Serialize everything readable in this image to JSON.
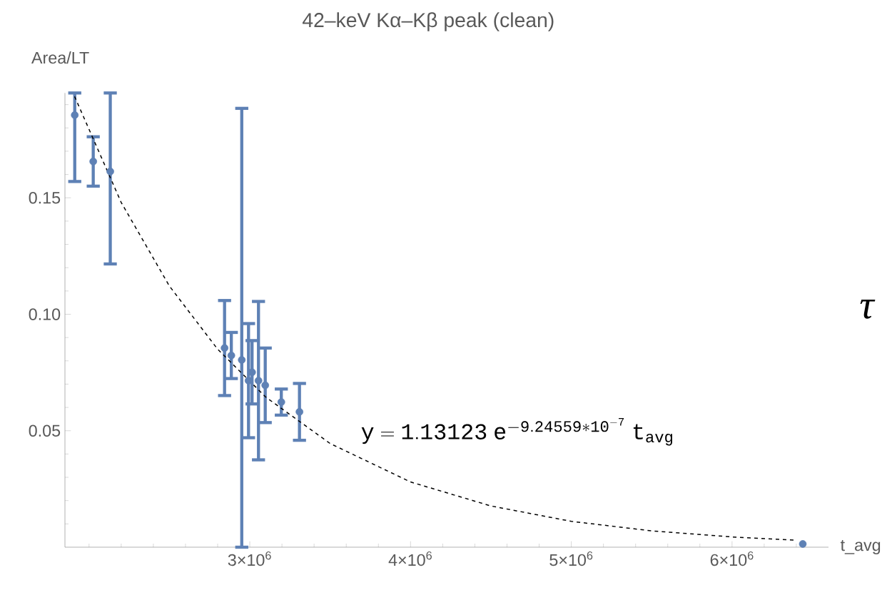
{
  "chart_data": {
    "type": "scatter",
    "title": "42–keV Kα–Kβ peak (clean)",
    "xlabel": "t_avg",
    "ylabel": "Area/LT",
    "xlim": [
      1850000,
      6600000
    ],
    "ylim": [
      0,
      0.195
    ],
    "xticks": [
      {
        "value": 2000000,
        "label": null
      },
      {
        "value": 2200000,
        "label": null
      },
      {
        "value": 2400000,
        "label": null
      },
      {
        "value": 2600000,
        "label": null
      },
      {
        "value": 2800000,
        "label": null
      },
      {
        "value": 3000000,
        "label": "3×10$^{6}$"
      },
      {
        "value": 3200000,
        "label": null
      },
      {
        "value": 3400000,
        "label": null
      },
      {
        "value": 3600000,
        "label": null
      },
      {
        "value": 3800000,
        "label": null
      },
      {
        "value": 4000000,
        "label": "4×10$^{6}$"
      },
      {
        "value": 4200000,
        "label": null
      },
      {
        "value": 4400000,
        "label": null
      },
      {
        "value": 4600000,
        "label": null
      },
      {
        "value": 4800000,
        "label": null
      },
      {
        "value": 5000000,
        "label": "5×10$^{6}$"
      },
      {
        "value": 5200000,
        "label": null
      },
      {
        "value": 5400000,
        "label": null
      },
      {
        "value": 5600000,
        "label": null
      },
      {
        "value": 5800000,
        "label": null
      },
      {
        "value": 6000000,
        "label": "6×10$^{6}$"
      },
      {
        "value": 6200000,
        "label": null
      },
      {
        "value": 6400000,
        "label": null
      }
    ],
    "yticks": [
      {
        "value": 0.01,
        "label": null
      },
      {
        "value": 0.02,
        "label": null
      },
      {
        "value": 0.03,
        "label": null
      },
      {
        "value": 0.04,
        "label": null
      },
      {
        "value": 0.05,
        "label": "0.05"
      },
      {
        "value": 0.06,
        "label": null
      },
      {
        "value": 0.07,
        "label": null
      },
      {
        "value": 0.08,
        "label": null
      },
      {
        "value": 0.09,
        "label": null
      },
      {
        "value": 0.1,
        "label": "0.10"
      },
      {
        "value": 0.11,
        "label": null
      },
      {
        "value": 0.12,
        "label": null
      },
      {
        "value": 0.13,
        "label": null
      },
      {
        "value": 0.14,
        "label": null
      },
      {
        "value": 0.15,
        "label": "0.15"
      },
      {
        "value": 0.16,
        "label": null
      },
      {
        "value": 0.17,
        "label": null
      },
      {
        "value": 0.18,
        "label": null
      },
      {
        "value": 0.19,
        "label": null
      }
    ],
    "series": [
      {
        "color": "#5e81b5",
        "marker": "circle",
        "x": [
          1911000,
          2026000,
          2132000,
          2843000,
          2885000,
          2950000,
          2992000,
          3014000,
          3054000,
          3096000,
          3196000,
          3309000,
          6440000
        ],
        "values": [
          0.1855,
          0.1656,
          0.1613,
          0.0855,
          0.0823,
          0.0804,
          0.0715,
          0.0751,
          0.0715,
          0.0695,
          0.0623,
          0.0581,
          0.0014
        ],
        "errors": [
          [
            0.157,
            0.195
          ],
          0.0106,
          [
            0.1216,
            0.195
          ],
          0.0204,
          0.0099,
          [
            0,
            0.1884
          ],
          0.0245,
          0.0136,
          0.034,
          0.016,
          0.0056,
          0.0122,
          null
        ]
      },
      {
        "type": "line",
        "color": "#000000",
        "marker": "none",
        "line_style": "dashed",
        "x": [
          1910000,
          2200000,
          2500000,
          2800000,
          3100000,
          3500000,
          4000000,
          4500000,
          5000000,
          5500000,
          6000000,
          6400000
        ],
        "values": [
          0.1935,
          0.148,
          0.1121,
          0.085,
          0.0644,
          0.0445,
          0.028,
          0.0177,
          0.0111,
          0.007,
          0.0044,
          0.003
        ]
      }
    ],
    "annotations": [
      "\\mathtt{y=1.13123\\;e^{-9.24559*10^{-7}}\\;t_{avg}}",
      "τ"
    ]
  }
}
